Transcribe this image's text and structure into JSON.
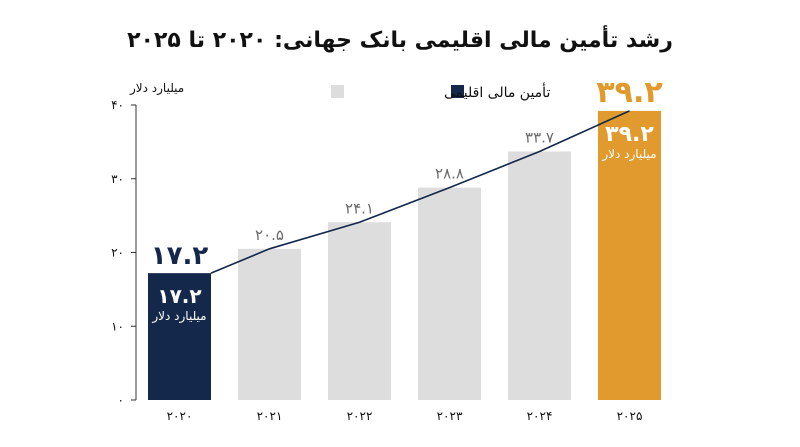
{
  "chart_data": {
    "type": "bar",
    "title": "رشد تأمین مالی اقلیمی بانک جهانی: ۲۰۲۰ تا ۲۰۲۵",
    "ylabel": "میلیارد دلار",
    "legend": [
      {
        "label": "تأمین مالی اقلیمی",
        "color": "#dddddd"
      },
      {
        "label": "",
        "color": "#14284b"
      }
    ],
    "legend_position": "top",
    "categories": [
      "۲۰۲۰",
      "۲۰۲۱",
      "۲۰۲۲",
      "۲۰۲۳",
      "۲۰۲۴",
      "۲۰۲۵"
    ],
    "values": [
      17.2,
      20.5,
      24.1,
      28.8,
      33.7,
      39.2
    ],
    "value_labels": [
      "۱۷.۲",
      "۲۰.۵",
      "۲۴.۱",
      "۲۸.۸",
      "۳۳.۷",
      "۳۹.۲"
    ],
    "highlight_unit_label": "میلیارد دلار",
    "yticks": [
      0,
      10,
      20,
      30,
      40
    ],
    "ytick_labels": [
      "۰",
      "۱۰",
      "۲۰",
      "۳۰",
      "۴۰"
    ],
    "ylim": [
      0,
      40
    ],
    "grid": false,
    "trend_line": true,
    "colors": {
      "default_bar": "#dddddd",
      "first_bar": "#14284b",
      "last_bar": "#e09a2d",
      "first_label": "#14284b",
      "last_label": "#e09a2d",
      "line": "#14284b"
    }
  }
}
